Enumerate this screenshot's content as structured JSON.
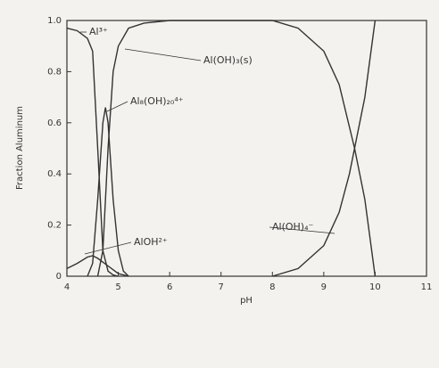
{
  "chart_data": {
    "type": "line",
    "xlabel": "pH",
    "ylabel": "Fraction Aluminum",
    "xlim": [
      4,
      11
    ],
    "xticks": [
      4,
      5,
      6,
      7,
      8,
      9,
      10,
      11
    ],
    "ylim": [
      0,
      1
    ],
    "yticks": [
      0,
      0.2,
      0.4,
      0.6,
      0.8,
      {
        "value": 1,
        "label": "1.0"
      }
    ],
    "color": "#333333",
    "series": [
      {
        "name": "Al³⁺",
        "x": [
          4,
          4.2,
          4.4,
          4.5,
          4.6,
          4.7,
          4.8,
          4.9,
          5.0
        ],
        "values": [
          0.97,
          0.96,
          0.93,
          0.88,
          0.5,
          0.1,
          0.02,
          0.005,
          0
        ]
      },
      {
        "name": "Al₈(OH)₂₀⁴⁺",
        "x": [
          4.4,
          4.5,
          4.6,
          4.7,
          4.75,
          4.8,
          4.9,
          5.0,
          5.1,
          5.2
        ],
        "values": [
          0,
          0.05,
          0.3,
          0.6,
          0.66,
          0.6,
          0.3,
          0.1,
          0.02,
          0
        ]
      },
      {
        "name": "AlOH²⁺",
        "x": [
          4,
          4.2,
          4.4,
          4.5,
          4.6,
          4.8,
          5.0,
          5.2
        ],
        "values": [
          0.03,
          0.05,
          0.075,
          0.08,
          0.07,
          0.04,
          0.01,
          0
        ]
      },
      {
        "name": "Al(OH)₃(s)",
        "x": [
          4.6,
          4.7,
          4.8,
          4.9,
          5.0,
          5.2,
          5.5,
          6,
          7,
          8,
          8.5,
          9,
          9.3,
          9.6,
          9.8,
          10
        ],
        "values": [
          0,
          0.1,
          0.5,
          0.8,
          0.9,
          0.97,
          0.99,
          1,
          1,
          1,
          0.97,
          0.88,
          0.75,
          0.5,
          0.3,
          0
        ]
      },
      {
        "name": "Al(OH)₄⁻",
        "x": [
          8,
          8.5,
          9,
          9.3,
          9.5,
          9.8,
          10
        ],
        "values": [
          0,
          0.03,
          0.12,
          0.25,
          0.4,
          0.7,
          1
        ]
      }
    ]
  }
}
